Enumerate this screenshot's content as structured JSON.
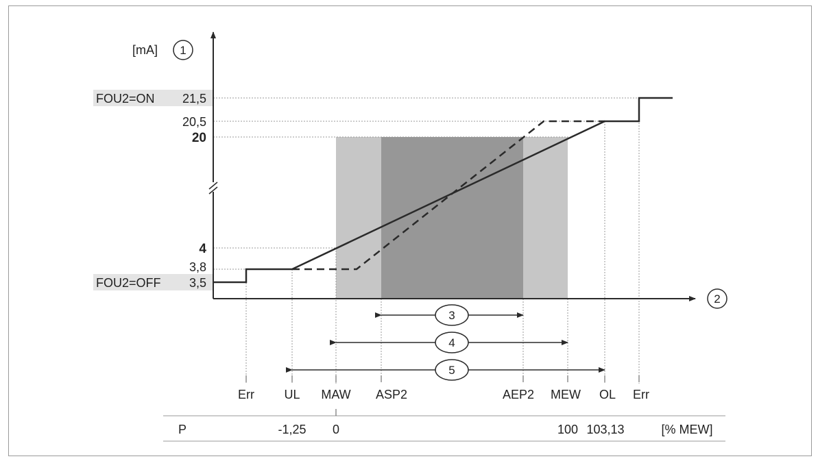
{
  "y_axis": {
    "unit": "[mA]",
    "marker": "1"
  },
  "x_axis": {
    "marker": "2"
  },
  "y_ticks": {
    "v215": "21,5",
    "v205": "20,5",
    "v20": "20",
    "v4": "4",
    "v38": "3,8",
    "v35": "3,5"
  },
  "fou_labels": {
    "on": "FOU2=ON",
    "off": "FOU2=OFF"
  },
  "ranges": {
    "r3": "3",
    "r4": "4",
    "r5": "5"
  },
  "x_labels": {
    "err_left": "Err",
    "ul": "UL",
    "maw": "MAW",
    "asp2": "ASP2",
    "aep2": "AEP2",
    "mew": "MEW",
    "ol": "OL",
    "err_right": "Err"
  },
  "p_row": {
    "label": "P",
    "ul_value": "-1,25",
    "maw_value": "0",
    "mew_value": "100",
    "ol_value": "103,13",
    "unit": "[% MEW]"
  },
  "colors": {
    "light_band": "#c6c6c6",
    "dark_band": "#979797",
    "fou_background": "#e4e4e4",
    "line": "#2a2a2a",
    "guide": "#9a9a9a"
  }
}
